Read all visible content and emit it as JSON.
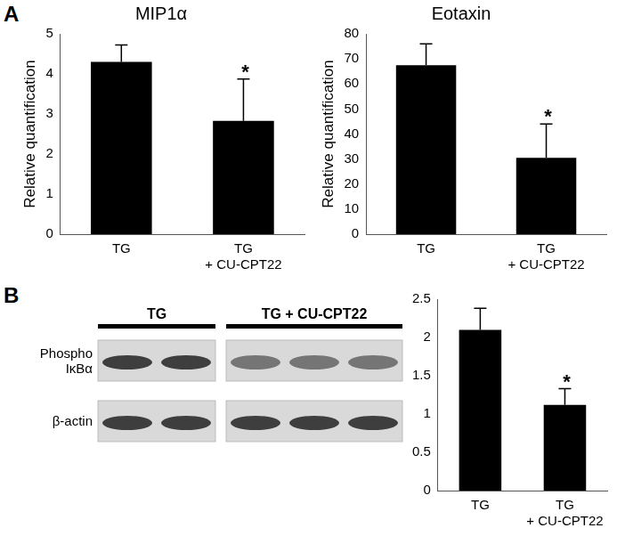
{
  "panel_labels": [
    "A",
    "B"
  ],
  "chart_data": [
    {
      "type": "bar",
      "title": "MIP1α",
      "y_label": "Relative quantification",
      "categories": [
        "TG",
        "TG + CU-CPT22"
      ],
      "values": [
        4.3,
        2.83
      ],
      "errors": [
        0.42,
        1.04
      ],
      "color": "#000000",
      "ylim": [
        0,
        5
      ],
      "yticks": [
        0,
        1,
        2,
        3,
        4,
        5
      ],
      "grid": false,
      "annotations": [
        {
          "text": "*",
          "category": "TG + CU-CPT22"
        }
      ]
    },
    {
      "type": "bar",
      "title": "Eotaxin",
      "y_label": "Relative quantification",
      "categories": [
        "TG",
        "TG + CU-CPT22"
      ],
      "values": [
        67.5,
        30.5
      ],
      "errors": [
        8.5,
        13.5
      ],
      "color": "#000000",
      "ylim": [
        0,
        80
      ],
      "yticks": [
        0,
        10,
        20,
        30,
        40,
        50,
        60,
        70,
        80
      ],
      "grid": false,
      "annotations": [
        {
          "text": "*",
          "category": "TG + CU-CPT22"
        }
      ]
    },
    {
      "type": "bar",
      "categories": [
        "TG",
        "TG + CU-CPT22"
      ],
      "values": [
        2.1,
        1.12
      ],
      "errors": [
        0.28,
        0.21
      ],
      "color": "#000000",
      "ylim": [
        0,
        2.5
      ],
      "yticks": [
        0,
        0.5,
        1,
        1.5,
        2,
        2.5
      ],
      "grid": false,
      "annotations": [
        {
          "text": "*",
          "category": "TG + CU-CPT22"
        }
      ]
    }
  ],
  "blot": {
    "groups": [
      {
        "label": "TG",
        "lanes": 2
      },
      {
        "label": "TG + CU-CPT22",
        "lanes": 3
      }
    ],
    "rows": [
      "Phospho IκBα",
      "β-actin"
    ]
  }
}
